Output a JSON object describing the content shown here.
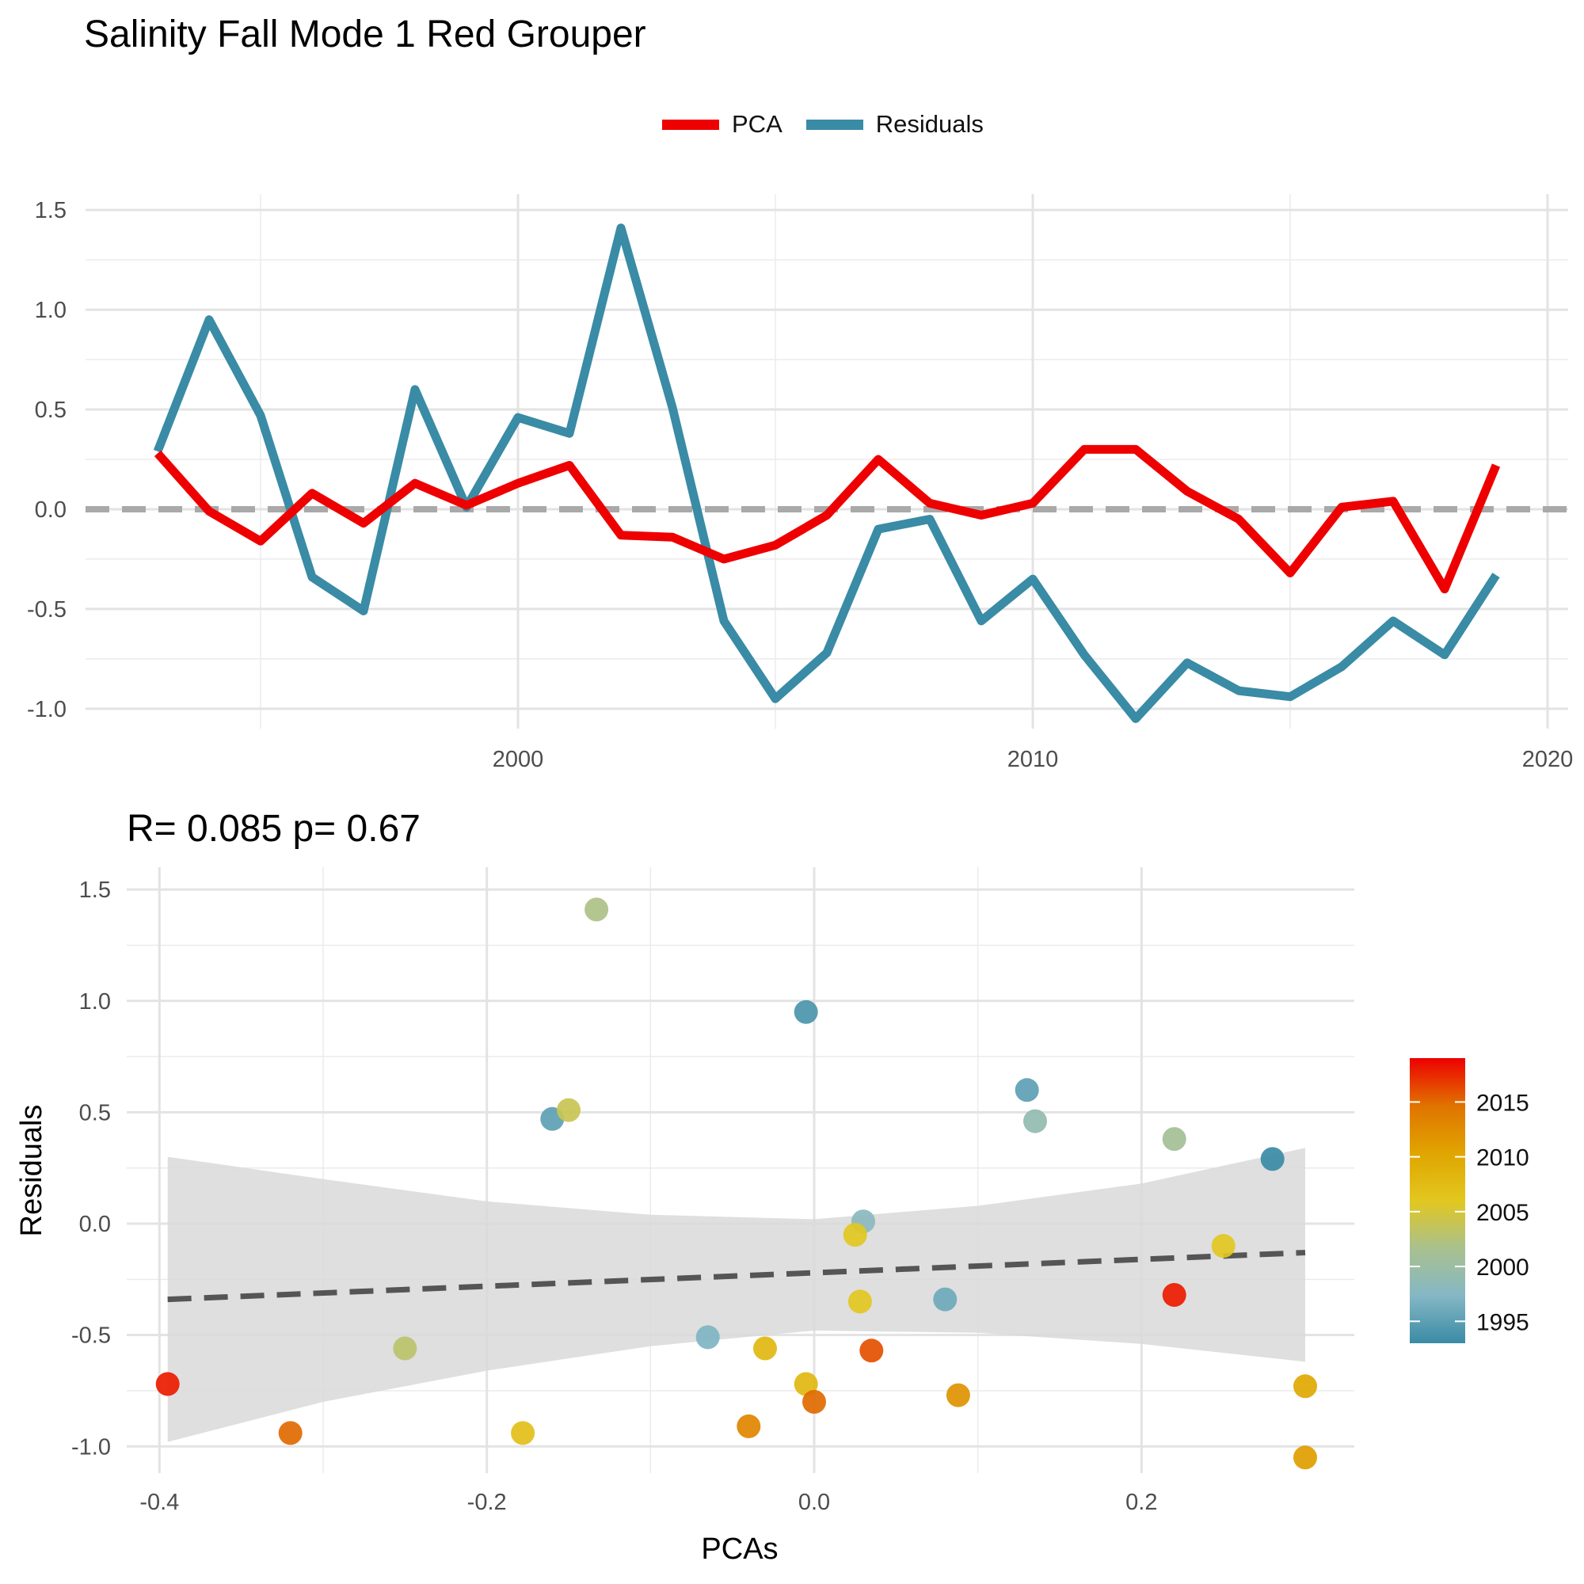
{
  "title": "Salinity Fall Mode 1 Red Grouper",
  "legend": [
    {
      "label": "PCA",
      "color": "#ee0000"
    },
    {
      "label": "Residuals",
      "color": "#3a8ba5"
    }
  ],
  "chart_data": [
    {
      "type": "line",
      "x": [
        1993,
        1994,
        1995,
        1996,
        1997,
        1998,
        1999,
        2000,
        2001,
        2002,
        2003,
        2004,
        2005,
        2006,
        2007,
        2008,
        2009,
        2010,
        2011,
        2012,
        2013,
        2014,
        2015,
        2016,
        2017,
        2018,
        2019
      ],
      "series": [
        {
          "name": "PCA",
          "color": "#ee0000",
          "values": [
            0.28,
            -0.01,
            -0.16,
            0.08,
            -0.07,
            0.13,
            0.02,
            0.13,
            0.22,
            -0.13,
            -0.14,
            -0.25,
            -0.18,
            -0.03,
            0.25,
            0.03,
            -0.03,
            0.03,
            0.3,
            0.3,
            0.09,
            -0.05,
            -0.32,
            0.01,
            0.04,
            -0.4,
            0.22
          ]
        },
        {
          "name": "Residuals",
          "color": "#3a8ba5",
          "values": [
            0.29,
            0.95,
            0.47,
            -0.34,
            -0.51,
            0.6,
            0.01,
            0.46,
            0.38,
            1.41,
            0.51,
            -0.56,
            -0.95,
            -0.72,
            -0.1,
            -0.05,
            -0.56,
            -0.35,
            -0.73,
            -1.05,
            -0.77,
            -0.91,
            -0.94,
            -0.79,
            -0.56,
            -0.73,
            -0.33
          ]
        }
      ],
      "xlim": [
        1991.6,
        2020.4
      ],
      "ylim": [
        -1.1,
        1.58
      ],
      "x_ticks": [
        "2000",
        "2010",
        "2020"
      ],
      "y_ticks": [
        "1.5",
        "1.0",
        "0.5",
        "0.0",
        "-0.5",
        "-1.0"
      ],
      "reference_line": {
        "y": 0,
        "style": "dashed",
        "color": "#a9a9a9"
      },
      "grid": true
    },
    {
      "type": "scatter",
      "title": "R= 0.085  p= 0.67",
      "xlabel": "PCAs",
      "ylabel": "Residuals",
      "xlim": [
        -0.42,
        0.33
      ],
      "ylim": [
        -1.12,
        1.6
      ],
      "x_ticks": [
        "-0.4",
        "-0.2",
        "0.0",
        "0.2"
      ],
      "y_ticks": [
        "1.5",
        "1.0",
        "0.5",
        "0.0",
        "-0.5",
        "-1.0"
      ],
      "points": [
        {
          "x": 0.28,
          "y": 0.29,
          "year": 1993
        },
        {
          "x": -0.005,
          "y": 0.95,
          "year": 1994
        },
        {
          "x": -0.16,
          "y": 0.47,
          "year": 1995
        },
        {
          "x": 0.08,
          "y": -0.34,
          "year": 1996
        },
        {
          "x": -0.065,
          "y": -0.51,
          "year": 1997
        },
        {
          "x": 0.13,
          "y": 0.6,
          "year": 1995
        },
        {
          "x": 0.03,
          "y": 0.01,
          "year": 1998
        },
        {
          "x": 0.135,
          "y": 0.46,
          "year": 1999
        },
        {
          "x": 0.22,
          "y": 0.38,
          "year": 2001
        },
        {
          "x": -0.133,
          "y": 1.41,
          "year": 2002
        },
        {
          "x": -0.15,
          "y": 0.51,
          "year": 2004
        },
        {
          "x": -0.25,
          "y": -0.56,
          "year": 2003
        },
        {
          "x": 0.025,
          "y": -0.05,
          "year": 2006
        },
        {
          "x": 0.028,
          "y": -0.35,
          "year": 2006
        },
        {
          "x": 0.25,
          "y": -0.1,
          "year": 2006
        },
        {
          "x": -0.178,
          "y": -0.94,
          "year": 2007
        },
        {
          "x": -0.03,
          "y": -0.56,
          "year": 2008
        },
        {
          "x": -0.005,
          "y": -0.72,
          "year": 2008
        },
        {
          "x": 0.3,
          "y": -0.73,
          "year": 2010
        },
        {
          "x": 0.3,
          "y": -1.05,
          "year": 2011
        },
        {
          "x": 0.088,
          "y": -0.77,
          "year": 2012
        },
        {
          "x": -0.04,
          "y": -0.91,
          "year": 2013
        },
        {
          "x": 0.0,
          "y": -0.8,
          "year": 2015
        },
        {
          "x": 0.035,
          "y": -0.57,
          "year": 2016
        },
        {
          "x": -0.32,
          "y": -0.94,
          "year": 2015
        },
        {
          "x": -0.395,
          "y": -0.72,
          "year": 2018
        },
        {
          "x": 0.22,
          "y": -0.32,
          "year": 2018
        }
      ],
      "fit_line": {
        "style": "dashed",
        "color": "#555555",
        "x": [
          -0.395,
          0.3
        ],
        "y": [
          -0.34,
          -0.13
        ]
      },
      "confidence_band": {
        "color": "#d9d9d9",
        "x": [
          -0.395,
          -0.3,
          -0.2,
          -0.1,
          0.0,
          0.1,
          0.2,
          0.3
        ],
        "upper": [
          0.3,
          0.2,
          0.1,
          0.04,
          0.02,
          0.08,
          0.18,
          0.34
        ],
        "lower": [
          -0.98,
          -0.8,
          -0.66,
          -0.55,
          -0.48,
          -0.49,
          -0.54,
          -0.62
        ]
      },
      "colorbar": {
        "ticks": [
          "2015",
          "2010",
          "2005",
          "2000",
          "1995"
        ],
        "range": [
          1993,
          2019
        ],
        "colors": [
          "#3a8ba5",
          "#85b7c5",
          "#a9c18e",
          "#e2c71f",
          "#e0a500",
          "#e07300",
          "#ee0000"
        ]
      },
      "grid": true
    }
  ]
}
